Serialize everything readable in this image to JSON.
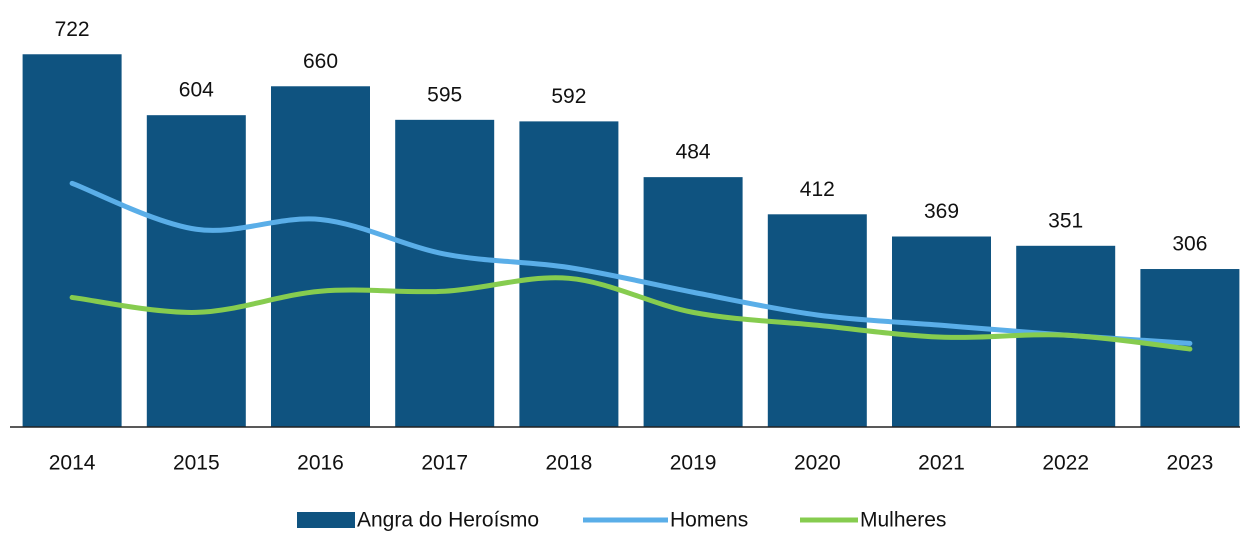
{
  "chart_data": {
    "type": "bar",
    "categories": [
      "2014",
      "2015",
      "2016",
      "2017",
      "2018",
      "2019",
      "2020",
      "2021",
      "2022",
      "2023"
    ],
    "ylim": [
      0,
      800
    ],
    "legend": "bottom",
    "series": [
      {
        "name": "Angra do Heroísmo",
        "type": "bar",
        "color": "#0f5380",
        "values": [
          722,
          604,
          660,
          595,
          592,
          484,
          412,
          369,
          351,
          306
        ]
      },
      {
        "name": "Homens",
        "type": "line",
        "color": "#5aaee8",
        "values": [
          472,
          383,
          402,
          335,
          309,
          261,
          217,
          197,
          178,
          162
        ]
      },
      {
        "name": "Mulheres",
        "type": "line",
        "color": "#86cc4f",
        "values": [
          251,
          222,
          263,
          263,
          288,
          222,
          197,
          174,
          178,
          151
        ]
      }
    ]
  }
}
